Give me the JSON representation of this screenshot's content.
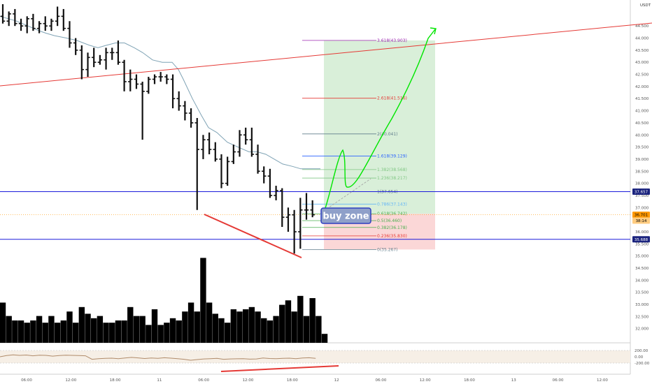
{
  "chart_data": {
    "type": "bar",
    "currency": "USDT",
    "y_range": [
      31.5,
      45.4
    ],
    "x_tick_labels": [
      "06:00",
      "12:00",
      "18:00",
      "11",
      "06:00",
      "12:00",
      "18:00",
      "12",
      "06:00",
      "12:00",
      "18:00",
      "13",
      "06:00",
      "12:00"
    ],
    "price_ticks": [
      "44.500",
      "44.000",
      "43.500",
      "43.000",
      "42.500",
      "42.000",
      "41.500",
      "41.000",
      "40.500",
      "40.000",
      "39.500",
      "39.000",
      "38.500",
      "38.000",
      "37.500",
      "37.000",
      "36.500",
      "36.000",
      "35.500",
      "35.000",
      "34.500",
      "34.000",
      "33.500",
      "33.000",
      "32.500",
      "32.000"
    ],
    "osc_ticks": [
      "200.00",
      "0.00",
      "-200.00"
    ],
    "price_bars": [
      {
        "o": 44.9,
        "h": 45.4,
        "l": 44.6,
        "c": 44.7
      },
      {
        "o": 44.7,
        "h": 45.1,
        "l": 44.5,
        "c": 45.0
      },
      {
        "o": 45.0,
        "h": 45.2,
        "l": 44.5,
        "c": 44.6
      },
      {
        "o": 44.6,
        "h": 44.8,
        "l": 44.3,
        "c": 44.5
      },
      {
        "o": 44.5,
        "h": 44.9,
        "l": 44.2,
        "c": 44.8
      },
      {
        "o": 44.8,
        "h": 45.0,
        "l": 44.3,
        "c": 44.4
      },
      {
        "o": 44.4,
        "h": 44.7,
        "l": 44.2,
        "c": 44.6
      },
      {
        "o": 44.6,
        "h": 44.9,
        "l": 44.3,
        "c": 44.5
      },
      {
        "o": 44.5,
        "h": 44.8,
        "l": 44.3,
        "c": 44.7
      },
      {
        "o": 44.7,
        "h": 45.3,
        "l": 44.5,
        "c": 44.9
      },
      {
        "o": 44.9,
        "h": 45.2,
        "l": 44.3,
        "c": 44.4
      },
      {
        "o": 44.4,
        "h": 44.7,
        "l": 43.6,
        "c": 43.8
      },
      {
        "o": 43.8,
        "h": 44.0,
        "l": 43.3,
        "c": 43.5
      },
      {
        "o": 43.5,
        "h": 43.7,
        "l": 42.3,
        "c": 42.7
      },
      {
        "o": 42.7,
        "h": 43.4,
        "l": 42.4,
        "c": 43.2
      },
      {
        "o": 43.2,
        "h": 43.6,
        "l": 42.8,
        "c": 43.0
      },
      {
        "o": 43.0,
        "h": 43.3,
        "l": 42.9,
        "c": 43.1
      },
      {
        "o": 43.1,
        "h": 43.6,
        "l": 42.7,
        "c": 43.4
      },
      {
        "o": 43.4,
        "h": 43.6,
        "l": 43.1,
        "c": 43.4
      },
      {
        "o": 43.4,
        "h": 43.9,
        "l": 42.9,
        "c": 43.0
      },
      {
        "o": 43.0,
        "h": 43.1,
        "l": 41.8,
        "c": 42.2
      },
      {
        "o": 42.2,
        "h": 42.7,
        "l": 41.8,
        "c": 42.3
      },
      {
        "o": 42.3,
        "h": 42.5,
        "l": 41.9,
        "c": 42.1
      },
      {
        "o": 42.1,
        "h": 42.2,
        "l": 39.8,
        "c": 41.8
      },
      {
        "o": 41.8,
        "h": 42.4,
        "l": 41.7,
        "c": 42.3
      },
      {
        "o": 42.3,
        "h": 42.5,
        "l": 42.1,
        "c": 42.4
      },
      {
        "o": 42.4,
        "h": 42.6,
        "l": 42.2,
        "c": 42.4
      },
      {
        "o": 42.4,
        "h": 42.5,
        "l": 42.1,
        "c": 42.3
      },
      {
        "o": 42.3,
        "h": 42.5,
        "l": 41.1,
        "c": 41.5
      },
      {
        "o": 41.5,
        "h": 41.8,
        "l": 41.0,
        "c": 41.2
      },
      {
        "o": 41.2,
        "h": 41.4,
        "l": 40.6,
        "c": 40.9
      },
      {
        "o": 40.9,
        "h": 41.1,
        "l": 40.3,
        "c": 40.5
      },
      {
        "o": 40.5,
        "h": 40.7,
        "l": 36.9,
        "c": 39.4
      },
      {
        "o": 39.4,
        "h": 40.0,
        "l": 39.0,
        "c": 39.8
      },
      {
        "o": 39.8,
        "h": 40.1,
        "l": 39.2,
        "c": 39.4
      },
      {
        "o": 39.4,
        "h": 39.7,
        "l": 38.9,
        "c": 39.0
      },
      {
        "o": 39.0,
        "h": 39.2,
        "l": 37.8,
        "c": 38.0
      },
      {
        "o": 38.0,
        "h": 39.1,
        "l": 37.9,
        "c": 38.9
      },
      {
        "o": 38.9,
        "h": 39.6,
        "l": 38.8,
        "c": 39.3
      },
      {
        "o": 39.3,
        "h": 40.2,
        "l": 39.1,
        "c": 40.0
      },
      {
        "o": 40.0,
        "h": 40.3,
        "l": 39.6,
        "c": 39.8
      },
      {
        "o": 39.8,
        "h": 40.3,
        "l": 39.1,
        "c": 39.2
      },
      {
        "o": 39.2,
        "h": 39.6,
        "l": 38.4,
        "c": 38.5
      },
      {
        "o": 38.5,
        "h": 38.7,
        "l": 38.0,
        "c": 38.3
      },
      {
        "o": 38.3,
        "h": 38.6,
        "l": 37.4,
        "c": 37.5
      },
      {
        "o": 37.5,
        "h": 37.9,
        "l": 37.3,
        "c": 37.7
      },
      {
        "o": 37.7,
        "h": 37.8,
        "l": 36.2,
        "c": 36.6
      },
      {
        "o": 36.6,
        "h": 37.0,
        "l": 36.0,
        "c": 36.7
      },
      {
        "o": 36.7,
        "h": 36.9,
        "l": 35.1,
        "c": 36.0
      },
      {
        "o": 36.0,
        "h": 37.4,
        "l": 35.3,
        "c": 36.9
      },
      {
        "o": 36.9,
        "h": 37.6,
        "l": 36.5,
        "c": 36.9
      },
      {
        "o": 36.9,
        "h": 37.3,
        "l": 36.6,
        "c": 36.7
      }
    ],
    "volumes": [
      18,
      12,
      10,
      10,
      9,
      10,
      12,
      9,
      12,
      9,
      10,
      14,
      9,
      16,
      13,
      11,
      12,
      9,
      9,
      10,
      10,
      16,
      12,
      12,
      8,
      15,
      8,
      9,
      11,
      10,
      14,
      18,
      14,
      38,
      18,
      13,
      11,
      9,
      15,
      14,
      15,
      16,
      14,
      11,
      10,
      12,
      17,
      19,
      14,
      21,
      12,
      20,
      12,
      4
    ],
    "oscillator": [
      0,
      40,
      60,
      45,
      55,
      30,
      50,
      45,
      20,
      40,
      50,
      45,
      40,
      30,
      -80,
      -60,
      -50,
      -45,
      -60,
      -40,
      -20,
      -35,
      -55,
      -40,
      -50,
      -30,
      -45,
      -60,
      -80,
      -110,
      -90,
      -70,
      -60,
      -50,
      -80,
      -70,
      -65,
      -60,
      -75,
      -70,
      -40,
      -55,
      -60,
      -50,
      -45,
      -60,
      -40,
      -30,
      -50
    ],
    "ema_line": [
      [
        44.9,
        0
      ],
      [
        44.8,
        12
      ],
      [
        44.7,
        24
      ],
      [
        44.5,
        40
      ],
      [
        44.3,
        56
      ],
      [
        44.2,
        66
      ],
      [
        44.1,
        78
      ],
      [
        44.0,
        95
      ],
      [
        43.9,
        110
      ],
      [
        43.7,
        128
      ],
      [
        43.6,
        140
      ],
      [
        43.7,
        152
      ],
      [
        43.8,
        165
      ],
      [
        43.8,
        178
      ],
      [
        43.6,
        192
      ],
      [
        43.4,
        204
      ],
      [
        43.1,
        218
      ],
      [
        43.0,
        232
      ],
      [
        43.0,
        246
      ],
      [
        42.7,
        255
      ],
      [
        42.3,
        262
      ],
      [
        41.5,
        275
      ],
      [
        40.8,
        288
      ],
      [
        40.3,
        298
      ],
      [
        40.1,
        310
      ],
      [
        39.7,
        325
      ],
      [
        39.5,
        340
      ],
      [
        39.3,
        356
      ],
      [
        39.3,
        368
      ],
      [
        39.2,
        380
      ],
      [
        39.0,
        392
      ],
      [
        38.8,
        404
      ],
      [
        38.7,
        418
      ],
      [
        38.6,
        430
      ],
      [
        38.6,
        445
      ],
      [
        38.6,
        458
      ]
    ],
    "fib_levels": [
      {
        "ratio": "3.618",
        "label": "3.618(43.903)",
        "price": 43.903,
        "color": "#9c27b0"
      },
      {
        "ratio": "2.618",
        "label": "2.618(41.516)",
        "price": 41.516,
        "color": "#e53935"
      },
      {
        "ratio": "2",
        "label": "2(40.041)",
        "price": 40.041,
        "color": "#607d8b"
      },
      {
        "ratio": "1.618",
        "label": "1.618(39.129)",
        "price": 39.129,
        "color": "#2962ff"
      },
      {
        "ratio": "1.382",
        "label": "1.382(38.568)",
        "price": 38.568,
        "color": "#81c784"
      },
      {
        "ratio": "1.236",
        "label": "1.236(38.217)",
        "price": 38.217,
        "color": "#81c784"
      },
      {
        "ratio": "1",
        "label": "1(37.654)",
        "price": 37.654,
        "color": "#607d8b"
      },
      {
        "ratio": "0.786",
        "label": "0.786(37.143)",
        "price": 37.143,
        "color": "#64b5f6"
      },
      {
        "ratio": "0.618",
        "label": "0.618(36.742)",
        "price": 36.742,
        "color": "#4caf50"
      },
      {
        "ratio": "0.5",
        "label": "0.5(36.460)",
        "price": 36.46,
        "color": "#4caf50"
      },
      {
        "ratio": "0.382",
        "label": "0.382(36.178)",
        "price": 36.178,
        "color": "#4caf50"
      },
      {
        "ratio": "0.236",
        "label": "0.236(35.830)",
        "price": 35.83,
        "color": "#e53935"
      },
      {
        "ratio": "0",
        "label": "0(35.267)",
        "price": 35.267,
        "color": "#607d8b"
      }
    ],
    "levels": {
      "resistance": 37.657,
      "support": 35.688,
      "current": 36.701
    },
    "right_badges": [
      {
        "text": "37.657",
        "price": 37.657,
        "bg": "#1a237e",
        "fg": "#ffffff"
      },
      {
        "text": "36.701",
        "price": 36.701,
        "bg": "#ff9800",
        "fg": "#000000"
      },
      {
        "text": "38:14",
        "price": 36.461,
        "bg": "#ffcc80",
        "fg": "#000000"
      },
      {
        "text": "35.688",
        "price": 35.688,
        "bg": "#1a237e",
        "fg": "#ffffff"
      }
    ],
    "trade_box": {
      "entry": 36.742,
      "target": 43.903,
      "stop": 35.267
    },
    "annotation": "buy zone",
    "colors": {
      "up": "#000000",
      "down": "#000000",
      "resistance": "#1a1adb",
      "trend": "#e53935",
      "divergence": "#e53935",
      "projection": "#00e600",
      "ema": "#7fa3b5",
      "oscillator": "#b08b6a",
      "target_fill": "#d9efd9",
      "stop_fill": "#fbd7d7",
      "buy_zone_bg": "#8fa0c9",
      "buy_zone_border": "#2f3fbf"
    }
  }
}
